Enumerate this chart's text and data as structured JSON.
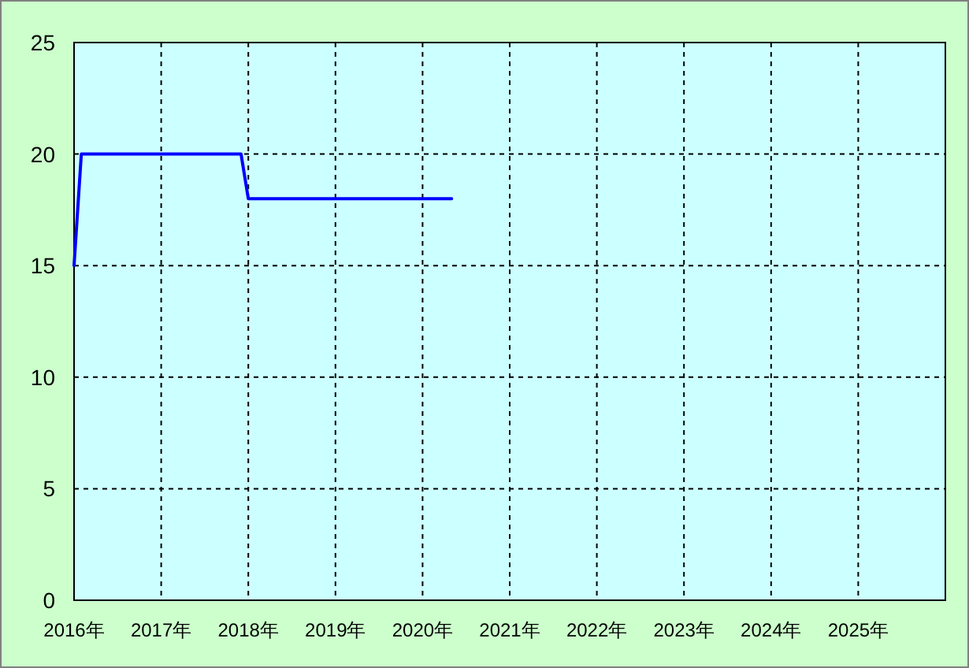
{
  "chart_data": {
    "type": "line",
    "x": [
      "2016-01",
      "2016-02",
      "2017-12",
      "2018-01",
      "2020-05"
    ],
    "series": [
      {
        "color": "#0000ff",
        "values": [
          15,
          20,
          20,
          18,
          18
        ]
      }
    ],
    "xlim": [
      "2016-01",
      "2026-01"
    ],
    "xticks": [
      {
        "value": "2016",
        "label": "2016年"
      },
      {
        "value": "2017",
        "label": "2017年"
      },
      {
        "value": "2018",
        "label": "2018年"
      },
      {
        "value": "2019",
        "label": "2019年"
      },
      {
        "value": "2020",
        "label": "2020年"
      },
      {
        "value": "2021",
        "label": "2021年"
      },
      {
        "value": "2022",
        "label": "2022年"
      },
      {
        "value": "2023",
        "label": "2023年"
      },
      {
        "value": "2024",
        "label": "2024年"
      },
      {
        "value": "2025",
        "label": "2025年"
      }
    ],
    "ylim": [
      0,
      25
    ],
    "yticks": [
      0,
      5,
      10,
      15,
      20,
      25
    ],
    "grid": true
  }
}
